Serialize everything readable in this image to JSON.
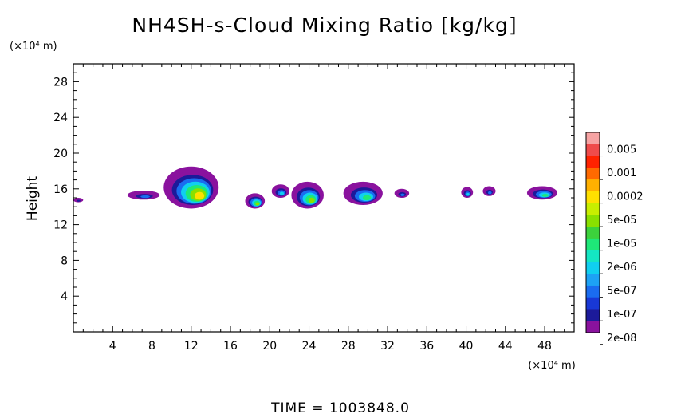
{
  "chart_data": {
    "type": "heatmap",
    "title": "NH4SH-s-Cloud Mixing Ratio [kg/kg]",
    "ylabel": "Height",
    "y_unit": "(×10⁴ m)",
    "x_unit": "(×10⁴ m)",
    "xlim": [
      0,
      51
    ],
    "ylim": [
      0,
      30
    ],
    "x_ticks": [
      4,
      8,
      12,
      16,
      20,
      24,
      28,
      32,
      36,
      40,
      44,
      48
    ],
    "y_ticks": [
      4,
      8,
      12,
      16,
      20,
      24,
      28
    ],
    "grid": false,
    "colorbar": {
      "labels": [
        "0.005",
        "0.001",
        "0.0002",
        "5e-05",
        "1e-05",
        "2e-06",
        "5e-07",
        "1e-07",
        "2e-08"
      ],
      "colors": [
        "#f7a3a3",
        "#ef4b4b",
        "#ff2200",
        "#ff6a00",
        "#ffb000",
        "#ffe000",
        "#c8ee00",
        "#8ae000",
        "#3cd23c",
        "#1ee878",
        "#14e6c3",
        "#10cff0",
        "#1da2f5",
        "#1a6cf0",
        "#1838d6",
        "#1c1a9a",
        "#8a129e"
      ]
    },
    "clouds": [
      {
        "x": [
          0,
          1
        ],
        "y": [
          14.5,
          15
        ],
        "peak": "1e-07"
      },
      {
        "x": [
          5.5,
          8.8
        ],
        "y": [
          14.8,
          15.8
        ],
        "peak": "5e-07"
      },
      {
        "x": [
          9.2,
          14.8
        ],
        "y": [
          13.8,
          18.5
        ],
        "peak": "0.0002"
      },
      {
        "x": [
          17.5,
          19.5
        ],
        "y": [
          13.8,
          15.5
        ],
        "peak": "5e-05"
      },
      {
        "x": [
          20.2,
          22
        ],
        "y": [
          15,
          16.5
        ],
        "peak": "2e-06"
      },
      {
        "x": [
          22.2,
          25.5
        ],
        "y": [
          13.8,
          16.8
        ],
        "peak": "5e-05"
      },
      {
        "x": [
          27.5,
          31.5
        ],
        "y": [
          14.2,
          16.8
        ],
        "peak": "1e-05"
      },
      {
        "x": [
          32.7,
          34.2
        ],
        "y": [
          15,
          16
        ],
        "peak": "5e-07"
      },
      {
        "x": [
          39.5,
          40.7
        ],
        "y": [
          15,
          16.2
        ],
        "peak": "2e-06"
      },
      {
        "x": [
          41.7,
          43
        ],
        "y": [
          15.2,
          16.3
        ],
        "peak": "5e-07"
      },
      {
        "x": [
          46.2,
          49.3
        ],
        "y": [
          14.8,
          16.3
        ],
        "peak": "1e-05"
      }
    ]
  },
  "footer": {
    "time_text": "TIME = 1003848.0"
  }
}
